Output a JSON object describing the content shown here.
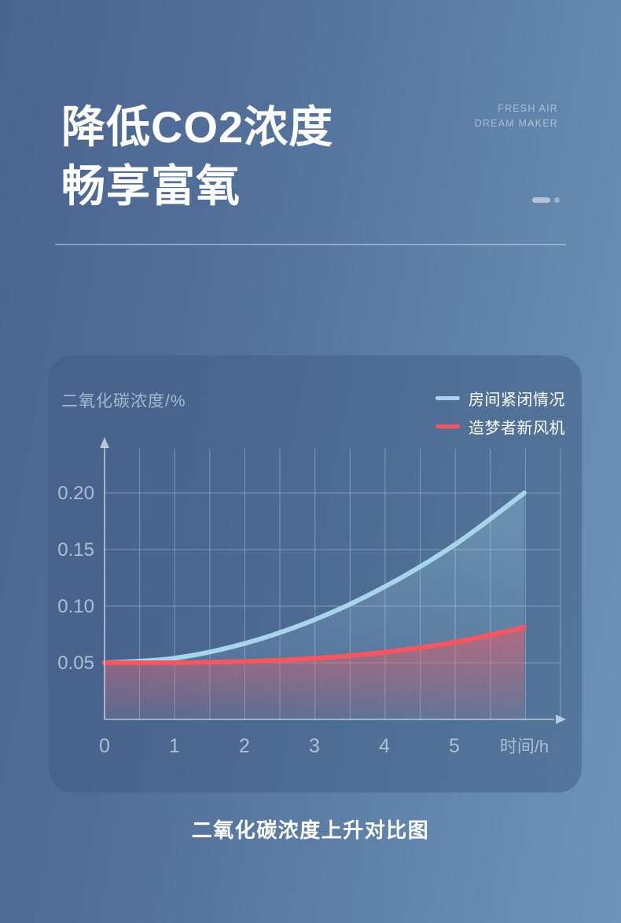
{
  "hero": {
    "title_line1": "降低CO2浓度",
    "title_line2": "畅享富氧",
    "brand_line1": "FRESH AIR",
    "brand_line2": "DREAM MAKER"
  },
  "caption": "二氧化碳浓度上升对比图",
  "colors": {
    "background_left": "#49648F",
    "background_right": "#6D95B9",
    "grid_line": "rgba(219,230,242,0.38)",
    "axis_line": "rgba(230,239,248,0.70)",
    "tick_label": "#C2CEDC"
  },
  "chart_data": {
    "type": "line",
    "title": "二氧化碳浓度上升对比图",
    "y_axis_title": "二氧化碳浓度/%",
    "x_axis_title": "时间/h",
    "x": [
      0,
      1,
      2,
      3,
      4,
      5,
      6
    ],
    "x_tick_labels": [
      "0",
      "1",
      "2",
      "3",
      "4",
      "5"
    ],
    "y_ticks": [
      0.05,
      0.1,
      0.15,
      0.2
    ],
    "y_tick_labels": [
      "0.05",
      "0.10",
      "0.15",
      "0.20"
    ],
    "xlim": [
      0,
      6.5
    ],
    "ylim": [
      0,
      0.24
    ],
    "grid": true,
    "legend_position": "top-right",
    "series": [
      {
        "name": "房间紧闭情况",
        "color": "#A5D6E9",
        "values": [
          0.05,
          0.054,
          0.067,
          0.088,
          0.117,
          0.154,
          0.2
        ],
        "fill_opacity_top": 0.32,
        "fill_opacity_bottom": 0.05
      },
      {
        "name": "造梦者新风机",
        "color": "#F7565F",
        "values": [
          0.05,
          0.0501,
          0.0512,
          0.0539,
          0.0593,
          0.0681,
          0.0813
        ],
        "fill_opacity_top": 0.55,
        "fill_opacity_bottom": 0.07
      }
    ]
  }
}
